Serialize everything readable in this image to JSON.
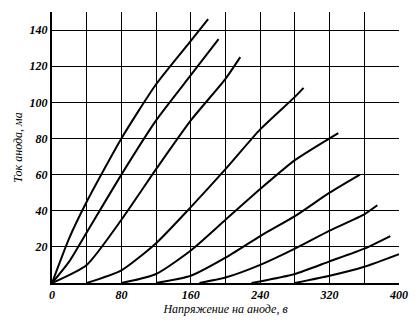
{
  "chart_data": {
    "type": "line",
    "x_label": "Напряжение на аноде, в",
    "y_label": "Ток анода, ма",
    "color": "#000000",
    "xlim": [
      0,
      400
    ],
    "ylim": [
      0,
      150
    ],
    "xticks": [
      0,
      80,
      160,
      240,
      320,
      400
    ],
    "yticks": [
      20,
      40,
      60,
      80,
      100,
      120,
      140
    ],
    "grid": true,
    "series": [
      {
        "x": [
          0,
          20,
          40,
          80,
          120,
          160,
          180
        ],
        "values": [
          0,
          25,
          45,
          80,
          110,
          134,
          146
        ]
      },
      {
        "x": [
          0,
          20,
          40,
          80,
          120,
          160,
          192
        ],
        "values": [
          0,
          12,
          28,
          60,
          90,
          115,
          135
        ]
      },
      {
        "x": [
          0,
          40,
          80,
          120,
          160,
          200,
          217
        ],
        "values": [
          0,
          10,
          35,
          63,
          90,
          113,
          125
        ]
      },
      {
        "x": [
          40,
          80,
          120,
          160,
          200,
          240,
          280,
          290
        ],
        "values": [
          0,
          7,
          22,
          42,
          63,
          85,
          103,
          108
        ]
      },
      {
        "x": [
          80,
          120,
          160,
          200,
          240,
          280,
          330
        ],
        "values": [
          0,
          5,
          18,
          35,
          52,
          68,
          83
        ]
      },
      {
        "x": [
          120,
          160,
          200,
          240,
          280,
          320,
          355
        ],
        "values": [
          0,
          4,
          14,
          26,
          37,
          50,
          60
        ]
      },
      {
        "x": [
          170,
          200,
          240,
          280,
          320,
          360,
          375
        ],
        "values": [
          0,
          3,
          10,
          19,
          29,
          38,
          43
        ]
      },
      {
        "x": [
          230,
          280,
          320,
          360,
          390
        ],
        "values": [
          0,
          5,
          12,
          19,
          26
        ]
      },
      {
        "x": [
          280,
          320,
          360,
          400
        ],
        "values": [
          0,
          4,
          9,
          16
        ]
      }
    ]
  }
}
